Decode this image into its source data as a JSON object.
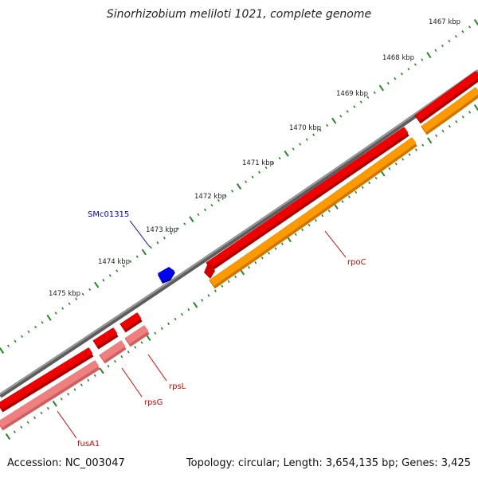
{
  "title": "Sinorhizobium meliloti 1021, complete genome",
  "footer": {
    "accession": "Accession: NC_003047",
    "summary": "Topology: circular; Length: 3,654,135 bp; Genes: 3,425"
  },
  "ticks": [
    "1467 kbp",
    "1468 kbp",
    "1469 kbp",
    "1470 kbp",
    "1471 kbp",
    "1472 kbp",
    "1473 kbp",
    "1474 kbp",
    "1475 kbp"
  ],
  "genes": [
    {
      "name": "SMc01315",
      "color": "#0000dd"
    },
    {
      "name": "rpoC",
      "color": "#dd0000"
    },
    {
      "name": "rpsL",
      "color": "#dd0000"
    },
    {
      "name": "rpsG",
      "color": "#dd0000"
    },
    {
      "name": "fusA1",
      "color": "#dd0000"
    }
  ],
  "colors": {
    "backbone": "#808080",
    "gene_red": "#ee0000",
    "gene_orange": "#ff9900",
    "gene_pink": "#f08080",
    "gene_blue": "#0000ee",
    "tick_green": "#228822"
  }
}
